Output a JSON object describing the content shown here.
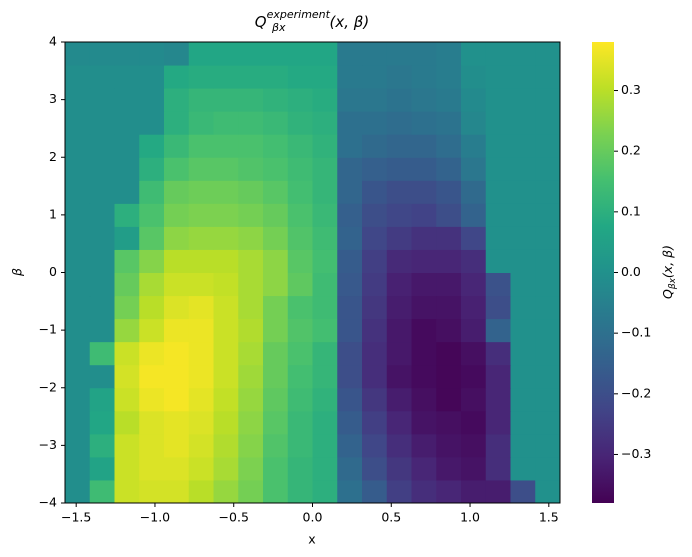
{
  "chart_data": {
    "type": "heatmap",
    "title": {
      "base": "Q",
      "sub": "βx",
      "sup": "experiment",
      "args": "(x, β)"
    },
    "x_label": "x",
    "y_label": "β",
    "colorbar_label": {
      "base": "Q",
      "sub": "βx",
      "args": "(x, β)"
    },
    "colormap": "viridis",
    "clim": [
      -0.38,
      0.38
    ],
    "colorbar_ticks": [
      {
        "value": -0.3,
        "label": "−0.3"
      },
      {
        "value": -0.2,
        "label": "−0.2"
      },
      {
        "value": -0.1,
        "label": "−0.1"
      },
      {
        "value": 0,
        "label": "0.0"
      },
      0.1,
      0.2,
      0.3
    ],
    "xlim": [
      -1.571,
      1.571
    ],
    "ylim": [
      -4,
      4
    ],
    "xticks": [
      {
        "value": -1.5,
        "label": "−1.5"
      },
      {
        "value": -1.0,
        "label": "−1.0"
      },
      {
        "value": -0.5,
        "label": "−0.5"
      },
      {
        "value": 0,
        "label": "0.0"
      },
      0.5,
      {
        "value": 1.0,
        "label": "1.0"
      },
      1.5
    ],
    "yticks": [
      {
        "value": -4,
        "label": "−4"
      },
      {
        "value": -3,
        "label": "−3"
      },
      {
        "value": -2,
        "label": "−2"
      },
      {
        "value": -1,
        "label": "−1"
      },
      0,
      1,
      2,
      3,
      4
    ],
    "z": [
      [
        -0.01,
        0.14,
        0.32,
        0.33,
        0.33,
        0.3,
        0.26,
        0.22,
        0.16,
        0.12,
        0.1,
        -0.1,
        -0.16,
        -0.24,
        -0.28,
        -0.3,
        -0.32,
        -0.32,
        -0.2,
        0
      ],
      [
        -0.01,
        0.06,
        0.32,
        0.34,
        0.34,
        0.32,
        0.28,
        0.23,
        0.16,
        0.12,
        0.1,
        -0.12,
        -0.2,
        -0.26,
        -0.3,
        -0.33,
        -0.34,
        -0.28,
        0,
        0
      ],
      [
        -0.01,
        0.1,
        0.32,
        0.34,
        0.35,
        0.33,
        0.29,
        0.24,
        0.17,
        0.13,
        0.1,
        -0.14,
        -0.22,
        -0.28,
        -0.32,
        -0.34,
        -0.35,
        -0.28,
        0,
        0
      ],
      [
        -0.01,
        0.07,
        0.3,
        0.34,
        0.35,
        0.34,
        0.3,
        0.25,
        0.18,
        0.13,
        0.1,
        -0.16,
        -0.24,
        -0.3,
        -0.34,
        -0.35,
        -0.36,
        -0.3,
        0,
        0
      ],
      [
        -0.01,
        0.06,
        0.32,
        0.36,
        0.37,
        0.35,
        0.31,
        0.26,
        0.19,
        0.14,
        0.11,
        -0.18,
        -0.26,
        -0.32,
        -0.35,
        -0.37,
        -0.35,
        -0.3,
        0,
        0
      ],
      [
        -0.01,
        -0.01,
        0.33,
        0.37,
        0.37,
        0.36,
        0.32,
        0.27,
        0.2,
        0.15,
        0.12,
        -0.2,
        -0.28,
        -0.34,
        -0.36,
        -0.37,
        -0.36,
        -0.3,
        0,
        0
      ],
      [
        -0.01,
        0.14,
        0.32,
        0.36,
        0.37,
        0.36,
        0.32,
        0.28,
        0.2,
        0.16,
        0.12,
        -0.2,
        -0.28,
        -0.33,
        -0.36,
        -0.37,
        -0.35,
        -0.28,
        0,
        0
      ],
      [
        -0.01,
        -0.01,
        0.26,
        0.32,
        0.36,
        0.36,
        0.32,
        0.29,
        0.22,
        0.17,
        0.15,
        -0.18,
        -0.27,
        -0.33,
        -0.36,
        -0.35,
        -0.32,
        -0.14,
        0,
        0
      ],
      [
        -0.01,
        -0.01,
        0.22,
        0.3,
        0.34,
        0.35,
        0.32,
        0.28,
        0.22,
        0.16,
        0.14,
        -0.18,
        -0.26,
        -0.32,
        -0.34,
        -0.34,
        -0.31,
        -0.2,
        0,
        0
      ],
      [
        -0.01,
        -0.01,
        0.2,
        0.28,
        0.32,
        0.32,
        0.31,
        0.28,
        0.25,
        0.19,
        0.14,
        -0.17,
        -0.25,
        -0.31,
        -0.33,
        -0.33,
        -0.3,
        -0.19,
        0,
        0
      ],
      [
        -0.01,
        -0.01,
        0.18,
        0.24,
        0.3,
        0.3,
        0.3,
        0.28,
        0.25,
        0.18,
        0.15,
        -0.16,
        -0.24,
        -0.29,
        -0.3,
        -0.3,
        -0.28,
        0,
        0,
        0
      ],
      [
        -0.01,
        -0.01,
        0.04,
        0.18,
        0.25,
        0.26,
        0.26,
        0.25,
        0.22,
        0.17,
        0.14,
        -0.14,
        -0.22,
        -0.25,
        -0.27,
        -0.27,
        -0.22,
        0,
        0,
        0
      ],
      [
        -0.01,
        -0.01,
        0.1,
        0.16,
        0.22,
        0.23,
        0.23,
        0.22,
        0.2,
        0.16,
        0.13,
        -0.15,
        -0.2,
        -0.22,
        -0.23,
        -0.2,
        -0.14,
        0,
        0,
        0
      ],
      [
        -0.01,
        -0.01,
        -0.01,
        0.14,
        0.2,
        0.21,
        0.21,
        0.2,
        0.18,
        0.15,
        0.12,
        -0.13,
        -0.18,
        -0.2,
        -0.2,
        -0.18,
        -0.12,
        0,
        0,
        0
      ],
      [
        -0.01,
        -0.01,
        -0.01,
        0.1,
        0.16,
        0.18,
        0.18,
        0.17,
        0.16,
        0.14,
        0.12,
        -0.13,
        -0.15,
        -0.16,
        -0.16,
        -0.14,
        -0.08,
        0,
        0,
        0
      ],
      [
        -0.01,
        -0.01,
        -0.01,
        0.08,
        0.13,
        0.16,
        0.16,
        0.16,
        0.15,
        0.13,
        0.11,
        -0.1,
        -0.12,
        -0.13,
        -0.13,
        -0.11,
        -0.06,
        0,
        0,
        0
      ],
      [
        -0.01,
        -0.01,
        -0.01,
        -0.01,
        0.1,
        0.13,
        0.14,
        0.14,
        0.13,
        0.11,
        0.1,
        -0.1,
        -0.1,
        -0.11,
        -0.1,
        -0.09,
        -0.03,
        0,
        0,
        0
      ],
      [
        -0.01,
        -0.01,
        -0.01,
        -0.01,
        0.1,
        0.12,
        0.12,
        0.12,
        0.11,
        0.1,
        0.09,
        -0.08,
        -0.08,
        -0.09,
        -0.08,
        -0.07,
        -0.02,
        0,
        0,
        0
      ],
      [
        -0.01,
        -0.01,
        -0.01,
        -0.01,
        0.08,
        0.09,
        0.09,
        0.09,
        0.09,
        0.08,
        0.08,
        -0.07,
        -0.07,
        -0.08,
        -0.07,
        -0.06,
        -0.01,
        0,
        0,
        0
      ],
      [
        -0.02,
        -0.02,
        -0.02,
        -0.02,
        -0.03,
        0.07,
        0.07,
        0.07,
        0.07,
        0.07,
        0.07,
        -0.07,
        -0.07,
        -0.07,
        -0.07,
        -0.06,
        0,
        0,
        0,
        0
      ]
    ]
  }
}
